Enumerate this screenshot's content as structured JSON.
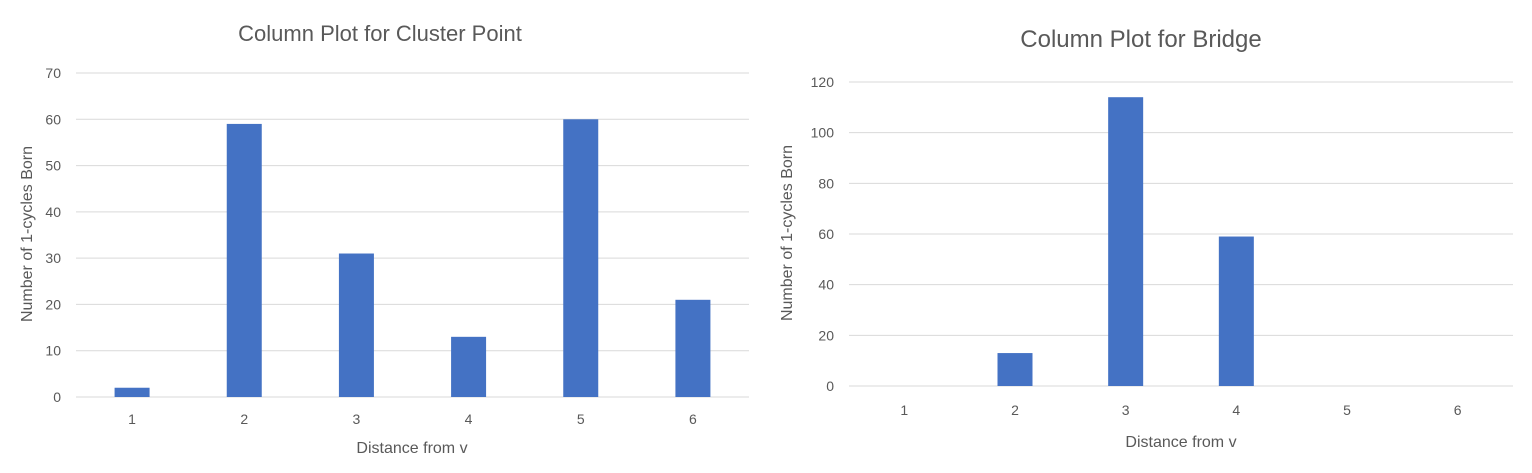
{
  "chart_data": [
    {
      "type": "bar",
      "title": "Column Plot for Cluster Point",
      "xlabel": "Distance from v",
      "ylabel": "Number of 1-cycles Born",
      "categories": [
        "1",
        "2",
        "3",
        "4",
        "5",
        "6"
      ],
      "values": [
        2,
        59,
        31,
        13,
        60,
        21
      ],
      "ylim": [
        0,
        70
      ],
      "yticks": [
        0,
        10,
        20,
        30,
        40,
        50,
        60,
        70
      ],
      "grid": true,
      "color": "#4472c4"
    },
    {
      "type": "bar",
      "title": "Column Plot for Bridge",
      "xlabel": "Distance from v",
      "ylabel": "Number of 1-cycles Born",
      "categories": [
        "1",
        "2",
        "3",
        "4",
        "5",
        "6"
      ],
      "values": [
        0,
        13,
        114,
        59,
        0,
        0
      ],
      "ylim": [
        0,
        120
      ],
      "yticks": [
        0,
        20,
        40,
        60,
        80,
        100,
        120
      ],
      "grid": true,
      "color": "#4472c4"
    }
  ]
}
